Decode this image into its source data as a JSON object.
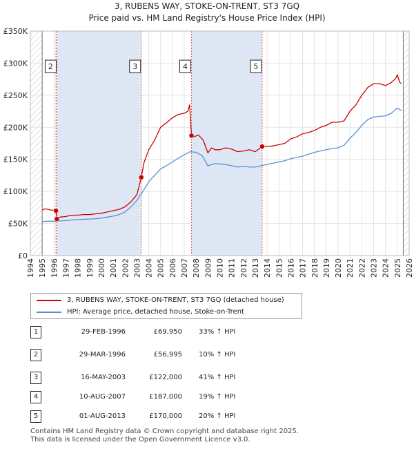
{
  "chart_data": {
    "type": "line",
    "title": "3, RUBENS WAY, STOKE-ON-TRENT, ST3 7GQ",
    "subtitle": "Price paid vs. HM Land Registry's House Price Index (HPI)",
    "xlabel": "",
    "ylabel": "",
    "xlim": [
      1994,
      2026
    ],
    "ylim": [
      0,
      350000
    ],
    "x_ticks": [
      1994,
      1995,
      1996,
      1997,
      1998,
      1999,
      2000,
      2001,
      2002,
      2003,
      2004,
      2005,
      2006,
      2007,
      2008,
      2009,
      2010,
      2011,
      2012,
      2013,
      2014,
      2015,
      2016,
      2017,
      2018,
      2019,
      2020,
      2021,
      2022,
      2023,
      2024,
      2025,
      2026
    ],
    "y_ticks": [
      {
        "value": 0,
        "label": "£0"
      },
      {
        "value": 50000,
        "label": "£50K"
      },
      {
        "value": 100000,
        "label": "£100K"
      },
      {
        "value": 150000,
        "label": "£150K"
      },
      {
        "value": 200000,
        "label": "£200K"
      },
      {
        "value": 250000,
        "label": "£250K"
      },
      {
        "value": 300000,
        "label": "£300K"
      },
      {
        "value": 350000,
        "label": "£350K"
      }
    ],
    "grid": true,
    "data_range": [
      1995.0,
      2025.5
    ],
    "series": [
      {
        "name": "3, RUBENS WAY, STOKE-ON-TRENT, ST3 7GQ (detached house)",
        "color": "#cc0000",
        "x": [
          1995.0,
          1995.25,
          1995.5,
          1995.75,
          1996.0,
          1996.16,
          1996.24,
          1996.5,
          1997.0,
          1997.5,
          1998.0,
          1998.5,
          1999.0,
          1999.5,
          2000.0,
          2000.5,
          2001.0,
          2001.5,
          2002.0,
          2002.5,
          2003.0,
          2003.37,
          2003.6,
          2004.0,
          2004.5,
          2005.0,
          2005.5,
          2006.0,
          2006.5,
          2007.0,
          2007.3,
          2007.45,
          2007.61,
          2007.8,
          2008.2,
          2008.6,
          2009.0,
          2009.3,
          2009.6,
          2010.0,
          2010.5,
          2011.0,
          2011.5,
          2012.0,
          2012.5,
          2013.0,
          2013.58,
          2014.0,
          2014.5,
          2015.0,
          2015.5,
          2016.0,
          2016.5,
          2017.0,
          2017.5,
          2018.0,
          2018.5,
          2019.0,
          2019.5,
          2020.0,
          2020.5,
          2021.0,
          2021.5,
          2022.0,
          2022.5,
          2023.0,
          2023.5,
          2024.0,
          2024.5,
          2024.85,
          2025.0,
          2025.2,
          2025.35
        ],
        "y": [
          71000,
          73000,
          72000,
          71000,
          70500,
          69950,
          56995,
          60000,
          61000,
          63000,
          63000,
          64000,
          64000,
          65000,
          66000,
          68000,
          70000,
          72000,
          76000,
          84000,
          95000,
          122000,
          145000,
          165000,
          180000,
          200000,
          207000,
          215000,
          220000,
          222000,
          225000,
          235000,
          187000,
          185000,
          188000,
          180000,
          160000,
          168000,
          165000,
          165000,
          168000,
          166000,
          162000,
          163000,
          165000,
          162000,
          170000,
          170000,
          171000,
          173000,
          175000,
          182000,
          185000,
          190000,
          192000,
          195000,
          200000,
          203000,
          208000,
          208000,
          210000,
          225000,
          235000,
          250000,
          262000,
          268000,
          268000,
          265000,
          270000,
          276000,
          282000,
          270000,
          268000
        ]
      },
      {
        "name": "HPI: Average price, detached house, Stoke-on-Trent",
        "color": "#5b8fd0",
        "x": [
          1995.0,
          1995.5,
          1996.0,
          1996.5,
          1997.0,
          1997.5,
          1998.0,
          1998.5,
          1999.0,
          1999.5,
          2000.0,
          2000.5,
          2001.0,
          2001.5,
          2002.0,
          2002.5,
          2003.0,
          2003.5,
          2004.0,
          2004.5,
          2005.0,
          2005.5,
          2006.0,
          2006.5,
          2007.0,
          2007.5,
          2008.0,
          2008.5,
          2009.0,
          2009.5,
          2010.0,
          2010.5,
          2011.0,
          2011.5,
          2012.0,
          2012.5,
          2013.0,
          2013.5,
          2014.0,
          2014.5,
          2015.0,
          2015.5,
          2016.0,
          2016.5,
          2017.0,
          2017.5,
          2018.0,
          2018.5,
          2019.0,
          2019.5,
          2020.0,
          2020.5,
          2021.0,
          2021.5,
          2022.0,
          2022.5,
          2023.0,
          2023.5,
          2024.0,
          2024.5,
          2025.0,
          2025.35
        ],
        "y": [
          53000,
          53500,
          53500,
          54000,
          54500,
          55500,
          56000,
          56500,
          57000,
          57500,
          58500,
          60000,
          61500,
          64000,
          68000,
          76000,
          86000,
          100000,
          115000,
          125000,
          135000,
          140000,
          146000,
          152000,
          157000,
          162000,
          161000,
          156000,
          140000,
          143000,
          143000,
          142000,
          140000,
          138000,
          139000,
          138000,
          138000,
          140000,
          142000,
          144000,
          146000,
          148000,
          151000,
          153000,
          155000,
          158000,
          161000,
          163000,
          165000,
          167000,
          168000,
          172000,
          183000,
          192000,
          203000,
          212000,
          216000,
          217000,
          218000,
          222000,
          230000,
          226000
        ]
      }
    ],
    "sales": [
      {
        "label": "1",
        "x": 1996.16,
        "y": 69950
      },
      {
        "label": "2",
        "x": 1996.24,
        "y": 56995
      },
      {
        "label": "3",
        "x": 2003.37,
        "y": 122000
      },
      {
        "label": "4",
        "x": 2007.61,
        "y": 187000
      },
      {
        "label": "5",
        "x": 2013.58,
        "y": 170000
      }
    ],
    "chart_labels": [
      {
        "label": "2",
        "x": 1996.24
      },
      {
        "label": "3",
        "x": 2003.37
      },
      {
        "label": "4",
        "x": 2007.61
      },
      {
        "label": "5",
        "x": 2013.58
      }
    ],
    "label_value": 295000
  },
  "legend": {
    "property_label": "3, RUBENS WAY, STOKE-ON-TRENT, ST3 7GQ (detached house)",
    "property_color": "#cc0000",
    "hpi_label": "HPI: Average price, detached house, Stoke-on-Trent",
    "hpi_color": "#5b8fd0"
  },
  "sales_table": [
    {
      "num": "1",
      "date": "29-FEB-1996",
      "price": "£69,950",
      "hpi": "33% ↑ HPI"
    },
    {
      "num": "2",
      "date": "29-MAR-1996",
      "price": "£56,995",
      "hpi": "10% ↑ HPI"
    },
    {
      "num": "3",
      "date": "16-MAY-2003",
      "price": "£122,000",
      "hpi": "41% ↑ HPI"
    },
    {
      "num": "4",
      "date": "10-AUG-2007",
      "price": "£187,000",
      "hpi": "19% ↑ HPI"
    },
    {
      "num": "5",
      "date": "01-AUG-2013",
      "price": "£170,000",
      "hpi": "20% ↑ HPI"
    }
  ],
  "footer": {
    "line1": "Contains HM Land Registry data © Crown copyright and database right 2025.",
    "line2": "This data is licensed under the Open Government Licence v3.0."
  }
}
